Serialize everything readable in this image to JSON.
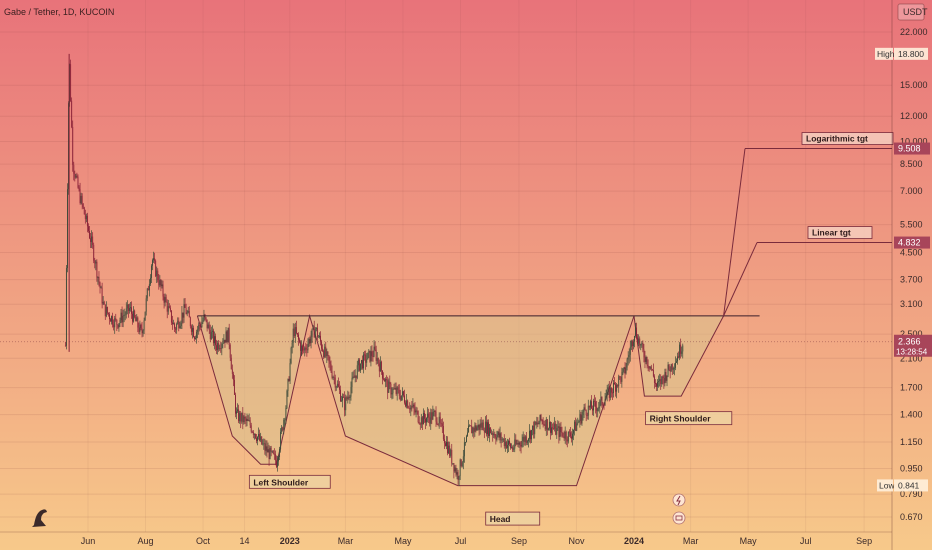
{
  "header": {
    "symbol": "Gabe / Tether, 1D, KUCOIN"
  },
  "currency_badge": "USDT",
  "colors": {
    "bg_top": "#e8737a",
    "bg_bottom": "#f7c98a",
    "pattern_fill": "#d8c38e",
    "pattern_stroke": "#7a2b3c",
    "candle_up": "#3d4a3a",
    "candle_down": "#8a2238",
    "price_tag": "#a8455a"
  },
  "chart_data": {
    "type": "candlestick",
    "title": "Gabe / Tether, 1D, KUCOIN",
    "y_scale": "log",
    "y_ticks": [
      "22.000",
      "15.000",
      "12.000",
      "10.000",
      "8.500",
      "7.000",
      "5.500",
      "4.500",
      "3.700",
      "3.100",
      "2.500",
      "2.100",
      "1.700",
      "1.400",
      "1.150",
      "0.950",
      "0.790",
      "0.670"
    ],
    "x_ticks": [
      "Jun",
      "Aug",
      "Oct",
      "14",
      "2023",
      "Mar",
      "May",
      "Jul",
      "Sep",
      "Nov",
      "2024",
      "Mar",
      "May",
      "Jul",
      "Sep"
    ],
    "x_bold_ticks": [
      "2023",
      "2024"
    ],
    "ylim": [
      0.62,
      28
    ],
    "price_path": [
      [
        "2022-05-08",
        2.3
      ],
      [
        "2022-05-12",
        18.8
      ],
      [
        "2022-05-16",
        8.5
      ],
      [
        "2022-05-22",
        7.0
      ],
      [
        "2022-06-05",
        4.8
      ],
      [
        "2022-06-18",
        3.0
      ],
      [
        "2022-07-01",
        2.7
      ],
      [
        "2022-07-15",
        3.0
      ],
      [
        "2022-07-28",
        2.5
      ],
      [
        "2022-08-08",
        4.3
      ],
      [
        "2022-08-20",
        3.3
      ],
      [
        "2022-09-01",
        2.6
      ],
      [
        "2022-09-12",
        3.0
      ],
      [
        "2022-09-22",
        2.5
      ],
      [
        "2022-10-02",
        2.8
      ],
      [
        "2022-10-15",
        2.3
      ],
      [
        "2022-10-28",
        2.5
      ],
      [
        "2022-11-05",
        1.4
      ],
      [
        "2022-11-20",
        1.3
      ],
      [
        "2022-12-05",
        1.1
      ],
      [
        "2022-12-18",
        1.0
      ],
      [
        "2022-12-28",
        1.5
      ],
      [
        "2023-01-05",
        2.6
      ],
      [
        "2023-01-15",
        2.2
      ],
      [
        "2023-01-28",
        2.6
      ],
      [
        "2023-02-12",
        2.0
      ],
      [
        "2023-02-28",
        1.5
      ],
      [
        "2023-03-15",
        2.0
      ],
      [
        "2023-04-01",
        2.2
      ],
      [
        "2023-04-15",
        1.7
      ],
      [
        "2023-05-01",
        1.6
      ],
      [
        "2023-05-20",
        1.35
      ],
      [
        "2023-06-05",
        1.4
      ],
      [
        "2023-06-18",
        1.1
      ],
      [
        "2023-06-28",
        0.9
      ],
      [
        "2023-07-10",
        1.25
      ],
      [
        "2023-07-25",
        1.3
      ],
      [
        "2023-08-10",
        1.2
      ],
      [
        "2023-08-25",
        1.1
      ],
      [
        "2023-09-10",
        1.2
      ],
      [
        "2023-09-25",
        1.35
      ],
      [
        "2023-10-10",
        1.25
      ],
      [
        "2023-10-25",
        1.2
      ],
      [
        "2023-11-10",
        1.45
      ],
      [
        "2023-11-25",
        1.5
      ],
      [
        "2023-12-10",
        1.7
      ],
      [
        "2023-12-22",
        1.9
      ],
      [
        "2024-01-02",
        2.6
      ],
      [
        "2024-01-10",
        2.2
      ],
      [
        "2024-01-18",
        2.0
      ],
      [
        "2024-01-25",
        1.7
      ],
      [
        "2024-02-05",
        1.9
      ],
      [
        "2024-02-15",
        2.1
      ],
      [
        "2024-02-22",
        2.37
      ]
    ],
    "neckline": {
      "value": 2.85,
      "from": "2022-09-25",
      "to": "2024-04-05"
    },
    "pattern_outline": [
      [
        "2022-09-25",
        2.85
      ],
      [
        "2022-11-01",
        1.2
      ],
      [
        "2022-12-01",
        0.98
      ],
      [
        "2022-12-18",
        0.98
      ],
      [
        "2023-01-22",
        2.85
      ],
      [
        "2023-03-01",
        1.2
      ],
      [
        "2023-06-28",
        0.84
      ],
      [
        "2023-11-01",
        0.84
      ],
      [
        "2024-01-01",
        2.85
      ],
      [
        "2024-01-12",
        1.6
      ],
      [
        "2024-02-20",
        1.6
      ],
      [
        "2024-04-05",
        2.85
      ]
    ],
    "targets": [
      {
        "name": "Logarithmic tgt",
        "value": 9.508,
        "label": "9.508"
      },
      {
        "name": "Linear tgt",
        "value": 4.832,
        "label": "4.832"
      }
    ],
    "annotations": [
      {
        "text": "Left Shoulder",
        "date": "2023-01-01",
        "value": 0.86
      },
      {
        "text": "Head",
        "date": "2023-08-01",
        "value": 0.66
      },
      {
        "text": "Right Shoulder",
        "date": "2024-02-28",
        "value": 1.36
      }
    ],
    "current_price": {
      "label": "2.366",
      "countdown": "13:28:54"
    },
    "high": {
      "label": "High",
      "value": "18.800"
    },
    "low": {
      "label": "Low",
      "value": "0.841"
    }
  }
}
